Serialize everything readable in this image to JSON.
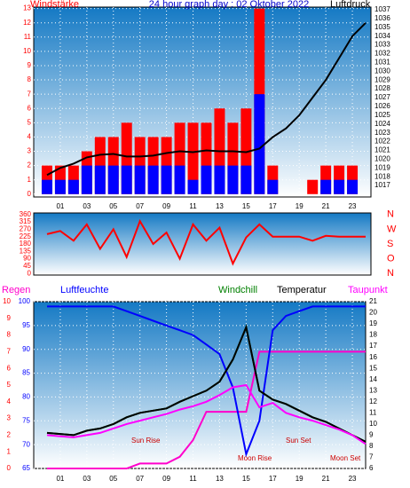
{
  "chart_data": [
    {
      "type": "combo",
      "title": "24 hour graph day : 02 Oktober 2022",
      "y_label": "Windstärke",
      "y2_label": "Luftdruck",
      "x": [
        0,
        1,
        2,
        3,
        4,
        5,
        6,
        7,
        8,
        9,
        10,
        11,
        12,
        13,
        14,
        15,
        16,
        17,
        18,
        19,
        20,
        21,
        22,
        23,
        24
      ],
      "xlim": [
        -1,
        24.4
      ],
      "xticks": [
        {
          "value": 1,
          "label": "01"
        },
        {
          "value": 3,
          "label": "03"
        },
        {
          "value": 5,
          "label": "05"
        },
        {
          "value": 7,
          "label": "07"
        },
        {
          "value": 9,
          "label": "09"
        },
        {
          "value": 11,
          "label": "11"
        },
        {
          "value": 13,
          "label": "13"
        },
        {
          "value": 15,
          "label": "15"
        },
        {
          "value": 17,
          "label": "17"
        },
        {
          "value": 19,
          "label": "19"
        },
        {
          "value": 21,
          "label": "21"
        },
        {
          "value": 23,
          "label": "23"
        }
      ],
      "ylim": [
        -0.2,
        13.1
      ],
      "yticks": [
        0,
        1,
        2,
        3,
        4,
        5,
        6,
        7,
        8,
        9,
        10,
        11,
        12,
        13
      ],
      "y2lim": [
        1015.7,
        1037.3
      ],
      "y2ticks": [
        1017,
        1018,
        1019,
        1020,
        1021,
        1022,
        1023,
        1024,
        1025,
        1026,
        1027,
        1028,
        1029,
        1030,
        1031,
        1032,
        1033,
        1034,
        1035,
        1036,
        1037
      ],
      "grid": true,
      "series": [
        {
          "type": "bar",
          "color": "#ff0000",
          "values": [
            2,
            2,
            2,
            3,
            4,
            4,
            5,
            4,
            4,
            4,
            5,
            5,
            5,
            6,
            5,
            6,
            13,
            2,
            0,
            0,
            1,
            2,
            2,
            2,
            0
          ]
        },
        {
          "type": "bar",
          "color": "#0000ff",
          "values": [
            1,
            1,
            1,
            2,
            2,
            2,
            2,
            2,
            2,
            2,
            2,
            1,
            2,
            2,
            2,
            2,
            7,
            1,
            0,
            0,
            0,
            1,
            1,
            1,
            0
          ]
        },
        {
          "type": "line",
          "axis": "y2",
          "color": "#000000",
          "values": [
            1018.2,
            1019,
            1019.5,
            1020.2,
            1020.5,
            1020.6,
            1020.3,
            1020.3,
            1020.4,
            1020.7,
            1020.9,
            1020.8,
            1021,
            1020.9,
            1020.9,
            1020.8,
            1021.2,
            1022.5,
            1023.5,
            1025,
            1027,
            1029,
            1031.5,
            1034,
            1035.5
          ]
        }
      ]
    },
    {
      "type": "line",
      "x": [
        0,
        1,
        2,
        3,
        4,
        5,
        6,
        7,
        8,
        9,
        10,
        11,
        12,
        13,
        14,
        15,
        16,
        17,
        18,
        19,
        20,
        21,
        22,
        23,
        24
      ],
      "xlim": [
        -1,
        24.4
      ],
      "ylim": [
        -10,
        370
      ],
      "yticks": [
        0,
        45,
        90,
        135,
        180,
        225,
        270,
        315,
        360
      ],
      "y2ticks": [
        {
          "value": 360,
          "label": "N"
        },
        {
          "value": 270,
          "label": "W"
        },
        {
          "value": 180,
          "label": "S"
        },
        {
          "value": 90,
          "label": "O"
        },
        {
          "value": 0,
          "label": "N"
        }
      ],
      "series": [
        {
          "color": "#ff0000",
          "values": [
            240,
            260,
            200,
            300,
            150,
            270,
            100,
            320,
            180,
            250,
            90,
            300,
            200,
            280,
            60,
            220,
            300,
            225,
            225,
            225,
            200,
            230,
            225,
            225,
            225
          ]
        }
      ]
    },
    {
      "type": "combo",
      "x": [
        0,
        1,
        2,
        3,
        4,
        5,
        6,
        7,
        8,
        9,
        10,
        11,
        12,
        13,
        14,
        15,
        16,
        17,
        18,
        19,
        20,
        21,
        22,
        23,
        24
      ],
      "xlim": [
        -1,
        24
      ],
      "xticks": [
        {
          "value": 1,
          "label": "01"
        },
        {
          "value": 3,
          "label": "03"
        },
        {
          "value": 5,
          "label": "05"
        },
        {
          "value": 7,
          "label": "07"
        },
        {
          "value": 9,
          "label": "09"
        },
        {
          "value": 11,
          "label": "11"
        },
        {
          "value": 13,
          "label": "13"
        },
        {
          "value": 15,
          "label": "15"
        },
        {
          "value": 17,
          "label": "17"
        },
        {
          "value": 19,
          "label": "19"
        },
        {
          "value": 21,
          "label": "21"
        },
        {
          "value": 23,
          "label": "23"
        }
      ],
      "ylim": [
        65,
        100
      ],
      "yticks": [
        65,
        70,
        75,
        80,
        85,
        90,
        95,
        100
      ],
      "y2lim": [
        6,
        21
      ],
      "y2ticks": [
        6,
        7,
        8,
        9,
        10,
        11,
        12,
        13,
        14,
        15,
        16,
        17,
        18,
        19,
        20,
        21
      ],
      "y3lim": [
        0,
        10
      ],
      "y3ticks": [
        0,
        1,
        2,
        3,
        4,
        5,
        6,
        7,
        8,
        9,
        10
      ],
      "grid": true,
      "series": [
        {
          "name": "Regen",
          "axis": "y3",
          "color": "#ff00cc",
          "values": [
            0,
            0,
            0,
            0,
            0,
            0,
            0,
            0.3,
            0.3,
            0.3,
            0.7,
            1.7,
            3.4,
            3.4,
            3.4,
            3.4,
            7,
            7,
            7,
            7,
            7,
            7,
            7,
            7,
            7
          ]
        },
        {
          "name": "Luftfeuchte",
          "color": "#0000ff",
          "values": [
            99,
            99,
            99,
            99,
            99,
            99,
            98,
            97,
            96,
            95,
            94,
            93,
            91,
            89,
            82,
            68,
            75,
            94,
            97,
            98,
            99,
            99,
            99,
            99,
            99
          ]
        },
        {
          "name": "Windchill",
          "axis": "y2",
          "color": "#008000",
          "values": [
            9.2,
            9.1,
            9.0,
            9.4,
            9.6,
            10.0,
            10.6,
            11.0,
            11.2,
            11.4,
            12.0,
            12.5,
            13.0,
            13.8,
            15.8,
            18.7,
            13.0,
            12.2,
            11.8,
            11.2,
            10.6,
            10.2,
            9.6,
            9.0,
            8.4
          ]
        },
        {
          "name": "Temperatur",
          "axis": "y2",
          "color": "#000000",
          "values": [
            9.2,
            9.1,
            9.0,
            9.4,
            9.6,
            10.0,
            10.6,
            11.0,
            11.2,
            11.4,
            12.0,
            12.5,
            13.0,
            13.8,
            15.8,
            18.7,
            13.0,
            12.2,
            11.8,
            11.2,
            10.6,
            10.2,
            9.6,
            9.0,
            8.4
          ]
        },
        {
          "name": "Taupunkt",
          "axis": "y2",
          "color": "#ff00ff",
          "values": [
            9.0,
            8.9,
            8.8,
            9.0,
            9.2,
            9.6,
            10.0,
            10.3,
            10.6,
            10.9,
            11.3,
            11.6,
            12.0,
            12.6,
            13.3,
            13.5,
            11.5,
            11.9,
            11.0,
            10.6,
            10.3,
            9.9,
            9.5,
            9.0,
            8.2
          ]
        }
      ],
      "annotations": [
        "Sun Rise",
        "Moon Rise",
        "Sun Set",
        "Moon Set"
      ]
    }
  ]
}
